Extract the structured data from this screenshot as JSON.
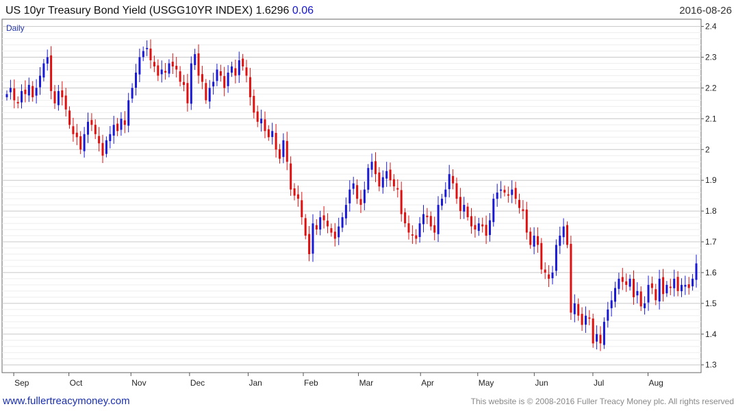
{
  "header": {
    "title": "US 10yr Treasury Bond Yield (USGG10YR INDEX) 1.6296",
    "change": "0.06",
    "date": "2016-08-26",
    "frequency": "Daily"
  },
  "footer": {
    "website": "www.fullertreacymoney.com",
    "copyright": "This website is © 2008-2016 Fuller Treacy Money plc. All rights reserved"
  },
  "colors": {
    "up": "#1a1ad6",
    "down": "#e01010",
    "grid": "#d6d6d6",
    "axis": "#555555"
  },
  "chart_data": {
    "type": "candlestick",
    "title": "US 10yr Treasury Bond Yield (USGG10YR INDEX) 1.6296",
    "xlabel": "",
    "ylabel": "",
    "ylim": [
      1.28,
      2.42
    ],
    "yticks": [
      "2.4",
      "2.3",
      "2.2",
      "2.1",
      "2",
      "1.9",
      "1.8",
      "1.7",
      "1.6",
      "1.5",
      "1.4",
      "1.3"
    ],
    "xticks": [
      "Sep",
      "Oct",
      "Nov",
      "Dec",
      "Jan",
      "Feb",
      "Mar",
      "Apr",
      "May",
      "Jun",
      "Jul",
      "Aug"
    ],
    "grid": true,
    "period": [
      "2015-08-31",
      "2016-08-26"
    ],
    "closes": [
      2.18,
      2.2,
      2.16,
      2.15,
      2.19,
      2.18,
      2.21,
      2.17,
      2.2,
      2.24,
      2.28,
      2.3,
      2.19,
      2.15,
      2.19,
      2.17,
      2.13,
      2.08,
      2.05,
      2.04,
      2.0,
      2.05,
      2.09,
      2.08,
      2.05,
      2.02,
      1.98,
      2.03,
      2.05,
      2.08,
      2.06,
      2.1,
      2.08,
      2.16,
      2.2,
      2.25,
      2.3,
      2.32,
      2.33,
      2.29,
      2.27,
      2.24,
      2.26,
      2.25,
      2.28,
      2.27,
      2.26,
      2.22,
      2.21,
      2.15,
      2.28,
      2.31,
      2.24,
      2.22,
      2.16,
      2.2,
      2.22,
      2.26,
      2.24,
      2.2,
      2.25,
      2.27,
      2.24,
      2.29,
      2.27,
      2.24,
      2.17,
      2.12,
      2.09,
      2.1,
      2.06,
      2.04,
      2.06,
      2.0,
      1.97,
      2.03,
      1.96,
      1.87,
      1.85,
      1.84,
      1.78,
      1.72,
      1.66,
      1.76,
      1.74,
      1.78,
      1.77,
      1.75,
      1.73,
      1.71,
      1.75,
      1.78,
      1.82,
      1.87,
      1.89,
      1.84,
      1.82,
      1.87,
      1.94,
      1.96,
      1.92,
      1.88,
      1.91,
      1.93,
      1.9,
      1.88,
      1.87,
      1.79,
      1.76,
      1.73,
      1.72,
      1.71,
      1.76,
      1.79,
      1.78,
      1.75,
      1.73,
      1.82,
      1.84,
      1.87,
      1.92,
      1.89,
      1.84,
      1.8,
      1.82,
      1.78,
      1.75,
      1.74,
      1.76,
      1.75,
      1.72,
      1.77,
      1.84,
      1.86,
      1.87,
      1.86,
      1.85,
      1.87,
      1.84,
      1.81,
      1.8,
      1.73,
      1.69,
      1.72,
      1.69,
      1.61,
      1.6,
      1.58,
      1.6,
      1.69,
      1.72,
      1.75,
      1.69,
      1.47,
      1.5,
      1.46,
      1.43,
      1.46,
      1.45,
      1.37,
      1.4,
      1.37,
      1.44,
      1.48,
      1.51,
      1.55,
      1.58,
      1.57,
      1.56,
      1.58,
      1.52,
      1.54,
      1.49,
      1.5,
      1.56,
      1.55,
      1.51,
      1.58,
      1.53,
      1.56,
      1.55,
      1.58,
      1.54,
      1.56,
      1.56,
      1.55,
      1.58,
      1.63
    ]
  }
}
